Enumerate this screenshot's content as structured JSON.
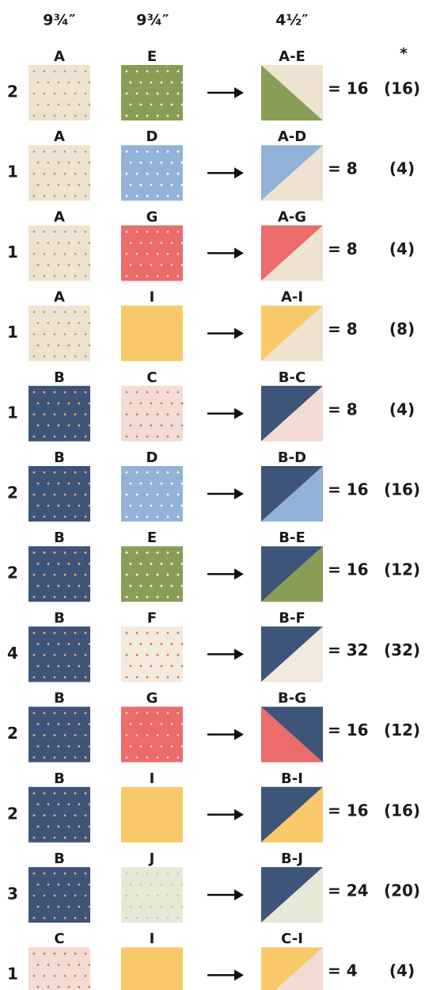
{
  "header": {
    "left_size": "9¾″",
    "right_size": "9¾″",
    "result_size": "4½″",
    "note": "*"
  },
  "rows": [
    {
      "count": "2",
      "left": "A",
      "right": "E",
      "result": "A-E",
      "total": "= 16",
      "alt": "(16)"
    },
    {
      "count": "1",
      "left": "A",
      "right": "D",
      "result": "A-D",
      "total": "= 8",
      "alt": "(4)"
    },
    {
      "count": "1",
      "left": "A",
      "right": "G",
      "result": "A-G",
      "total": "= 8",
      "alt": "(4)"
    },
    {
      "count": "1",
      "left": "A",
      "right": "I",
      "result": "A-I",
      "total": "= 8",
      "alt": "(8)"
    },
    {
      "count": "1",
      "left": "B",
      "right": "C",
      "result": "B-C",
      "total": "= 8",
      "alt": "(4)"
    },
    {
      "count": "2",
      "left": "B",
      "right": "D",
      "result": "B-D",
      "total": "= 16",
      "alt": "(16)"
    },
    {
      "count": "2",
      "left": "B",
      "right": "E",
      "result": "B-E",
      "total": "= 16",
      "alt": "(12)"
    },
    {
      "count": "4",
      "left": "B",
      "right": "F",
      "result": "B-F",
      "total": "= 32",
      "alt": "(32)"
    },
    {
      "count": "2",
      "left": "B",
      "right": "G",
      "result": "B-G",
      "total": "= 16",
      "alt": "(12)"
    },
    {
      "count": "2",
      "left": "B",
      "right": "I",
      "result": "B-I",
      "total": "= 16",
      "alt": "(16)"
    },
    {
      "count": "3",
      "left": "B",
      "right": "J",
      "result": "B-J",
      "total": "= 24",
      "alt": "(20)"
    },
    {
      "count": "1",
      "left": "C",
      "right": "I",
      "result": "C-I",
      "total": "= 4",
      "alt": "(4)"
    }
  ]
}
